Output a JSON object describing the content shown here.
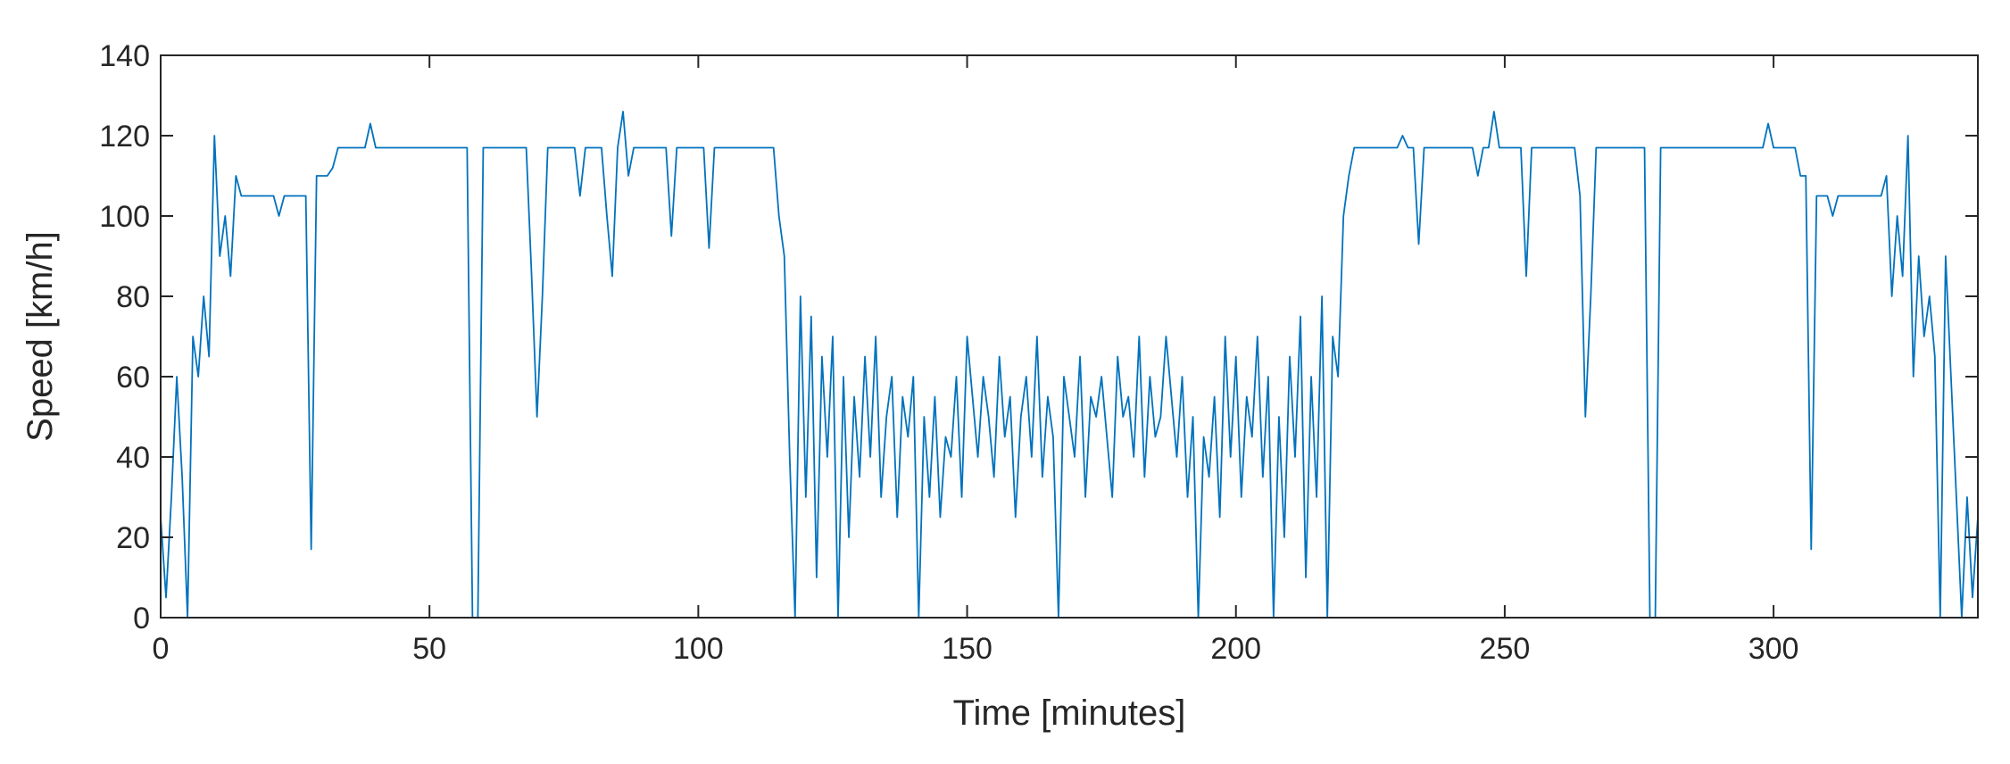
{
  "chart_data": {
    "type": "line",
    "xlabel": "Time [minutes]",
    "ylabel": "Speed [km/h]",
    "color": "#0072bd",
    "xlim": [
      0,
      338
    ],
    "ylim": [
      0,
      140
    ],
    "xticks": [
      0,
      50,
      100,
      150,
      200,
      250,
      300
    ],
    "yticks": [
      0,
      20,
      40,
      60,
      80,
      100,
      120,
      140
    ],
    "x": [
      0,
      1,
      2,
      3,
      4,
      5,
      6,
      7,
      8,
      9,
      10,
      11,
      12,
      13,
      14,
      15,
      16,
      17,
      18,
      19,
      20,
      21,
      22,
      23,
      24,
      25,
      26,
      27,
      28,
      29,
      30,
      31,
      32,
      33,
      34,
      35,
      36,
      37,
      38,
      39,
      40,
      41,
      42,
      43,
      44,
      45,
      46,
      47,
      48,
      49,
      50,
      51,
      52,
      53,
      54,
      55,
      56,
      57,
      58,
      59,
      60,
      61,
      62,
      63,
      64,
      65,
      66,
      67,
      68,
      69,
      70,
      71,
      72,
      73,
      74,
      75,
      76,
      77,
      78,
      79,
      80,
      81,
      82,
      83,
      84,
      85,
      86,
      87,
      88,
      89,
      90,
      91,
      92,
      93,
      94,
      95,
      96,
      97,
      98,
      99,
      100,
      101,
      102,
      103,
      104,
      105,
      106,
      107,
      108,
      109,
      110,
      111,
      112,
      113,
      114,
      115,
      116,
      117,
      118,
      119,
      120,
      121,
      122,
      123,
      124,
      125,
      126,
      127,
      128,
      129,
      130,
      131,
      132,
      133,
      134,
      135,
      136,
      137,
      138,
      139,
      140,
      141,
      142,
      143,
      144,
      145,
      146,
      147,
      148,
      149,
      150,
      151,
      152,
      153,
      154,
      155,
      156,
      157,
      158,
      159,
      160,
      161,
      162,
      163,
      164,
      165,
      166,
      167,
      168,
      169,
      170,
      171,
      172,
      173,
      174,
      175,
      176,
      177,
      178,
      179,
      180,
      181,
      182,
      183,
      184,
      185,
      186,
      187,
      188,
      189,
      190,
      191,
      192,
      193,
      194,
      195,
      196,
      197,
      198,
      199,
      200,
      201,
      202,
      203,
      204,
      205,
      206,
      207,
      208,
      209,
      210,
      211,
      212,
      213,
      214,
      215,
      216,
      217,
      218,
      219,
      220,
      221,
      222,
      223,
      224,
      225,
      226,
      227,
      228,
      229,
      230,
      231,
      232,
      233,
      234,
      235,
      236,
      237,
      238,
      239,
      240,
      241,
      242,
      243,
      244,
      245,
      246,
      247,
      248,
      249,
      250,
      251,
      252,
      253,
      254,
      255,
      256,
      257,
      258,
      259,
      260,
      261,
      262,
      263,
      264,
      265,
      266,
      267,
      268,
      269,
      270,
      271,
      272,
      273,
      274,
      275,
      276,
      277,
      278,
      279,
      280,
      281,
      282,
      283,
      284,
      285,
      286,
      287,
      288,
      289,
      290,
      291,
      292,
      293,
      294,
      295,
      296,
      297,
      298,
      299,
      300,
      301,
      302,
      303,
      304,
      305,
      306,
      307,
      308,
      309,
      310,
      311,
      312,
      313,
      314,
      315,
      316,
      317,
      318,
      319,
      320,
      321,
      322,
      323,
      324,
      325,
      326,
      327,
      328,
      329,
      330,
      331,
      332,
      333,
      334,
      335,
      336,
      337,
      338
    ],
    "values": [
      25,
      5,
      30,
      60,
      35,
      0,
      70,
      60,
      80,
      65,
      120,
      90,
      100,
      85,
      110,
      105,
      105,
      105,
      105,
      105,
      105,
      105,
      100,
      105,
      105,
      105,
      105,
      105,
      17,
      110,
      110,
      110,
      112,
      117,
      117,
      117,
      117,
      117,
      117,
      123,
      117,
      117,
      117,
      117,
      117,
      117,
      117,
      117,
      117,
      117,
      117,
      117,
      117,
      117,
      117,
      117,
      117,
      117,
      0,
      0,
      117,
      117,
      117,
      117,
      117,
      117,
      117,
      117,
      117,
      85,
      50,
      80,
      117,
      117,
      117,
      117,
      117,
      117,
      105,
      117,
      117,
      117,
      117,
      100,
      85,
      117,
      126,
      110,
      117,
      117,
      117,
      117,
      117,
      117,
      117,
      95,
      117,
      117,
      117,
      117,
      117,
      117,
      92,
      117,
      117,
      117,
      117,
      117,
      117,
      117,
      117,
      117,
      117,
      117,
      117,
      100,
      90,
      40,
      0,
      80,
      30,
      75,
      10,
      65,
      40,
      70,
      0,
      60,
      20,
      55,
      35,
      65,
      40,
      70,
      30,
      50,
      60,
      25,
      55,
      45,
      60,
      0,
      50,
      30,
      55,
      25,
      45,
      40,
      60,
      30,
      70,
      55,
      40,
      60,
      50,
      35,
      65,
      45,
      55,
      25,
      50,
      60,
      40,
      70,
      35,
      55,
      45,
      0,
      60,
      50,
      40,
      65,
      30,
      55,
      50,
      60,
      45,
      30,
      65,
      50,
      55,
      40,
      70,
      35,
      60,
      45,
      50,
      70,
      55,
      40,
      60,
      30,
      50,
      0,
      45,
      35,
      55,
      25,
      70,
      40,
      65,
      30,
      55,
      45,
      70,
      35,
      60,
      0,
      50,
      20,
      65,
      40,
      75,
      10,
      60,
      30,
      80,
      0,
      70,
      60,
      100,
      110,
      117,
      117,
      117,
      117,
      117,
      117,
      117,
      117,
      117,
      120,
      117,
      117,
      93,
      117,
      117,
      117,
      117,
      117,
      117,
      117,
      117,
      117,
      117,
      110,
      117,
      117,
      126,
      117,
      117,
      117,
      117,
      117,
      85,
      117,
      117,
      117,
      117,
      117,
      117,
      117,
      117,
      117,
      105,
      50,
      80,
      117,
      117,
      117,
      117,
      117,
      117,
      117,
      117,
      117,
      117,
      0,
      0,
      117,
      117,
      117,
      117,
      117,
      117,
      117,
      117,
      117,
      117,
      117,
      117,
      117,
      117,
      117,
      117,
      117,
      117,
      117,
      117,
      123,
      117,
      117,
      117,
      117,
      117,
      110,
      110,
      17,
      105,
      105,
      105,
      100,
      105,
      105,
      105,
      105,
      105,
      105,
      105,
      105,
      105,
      110,
      80,
      100,
      85,
      120,
      60,
      90,
      70,
      80,
      65,
      0,
      90,
      60,
      30,
      0,
      30,
      5,
      25
    ]
  }
}
